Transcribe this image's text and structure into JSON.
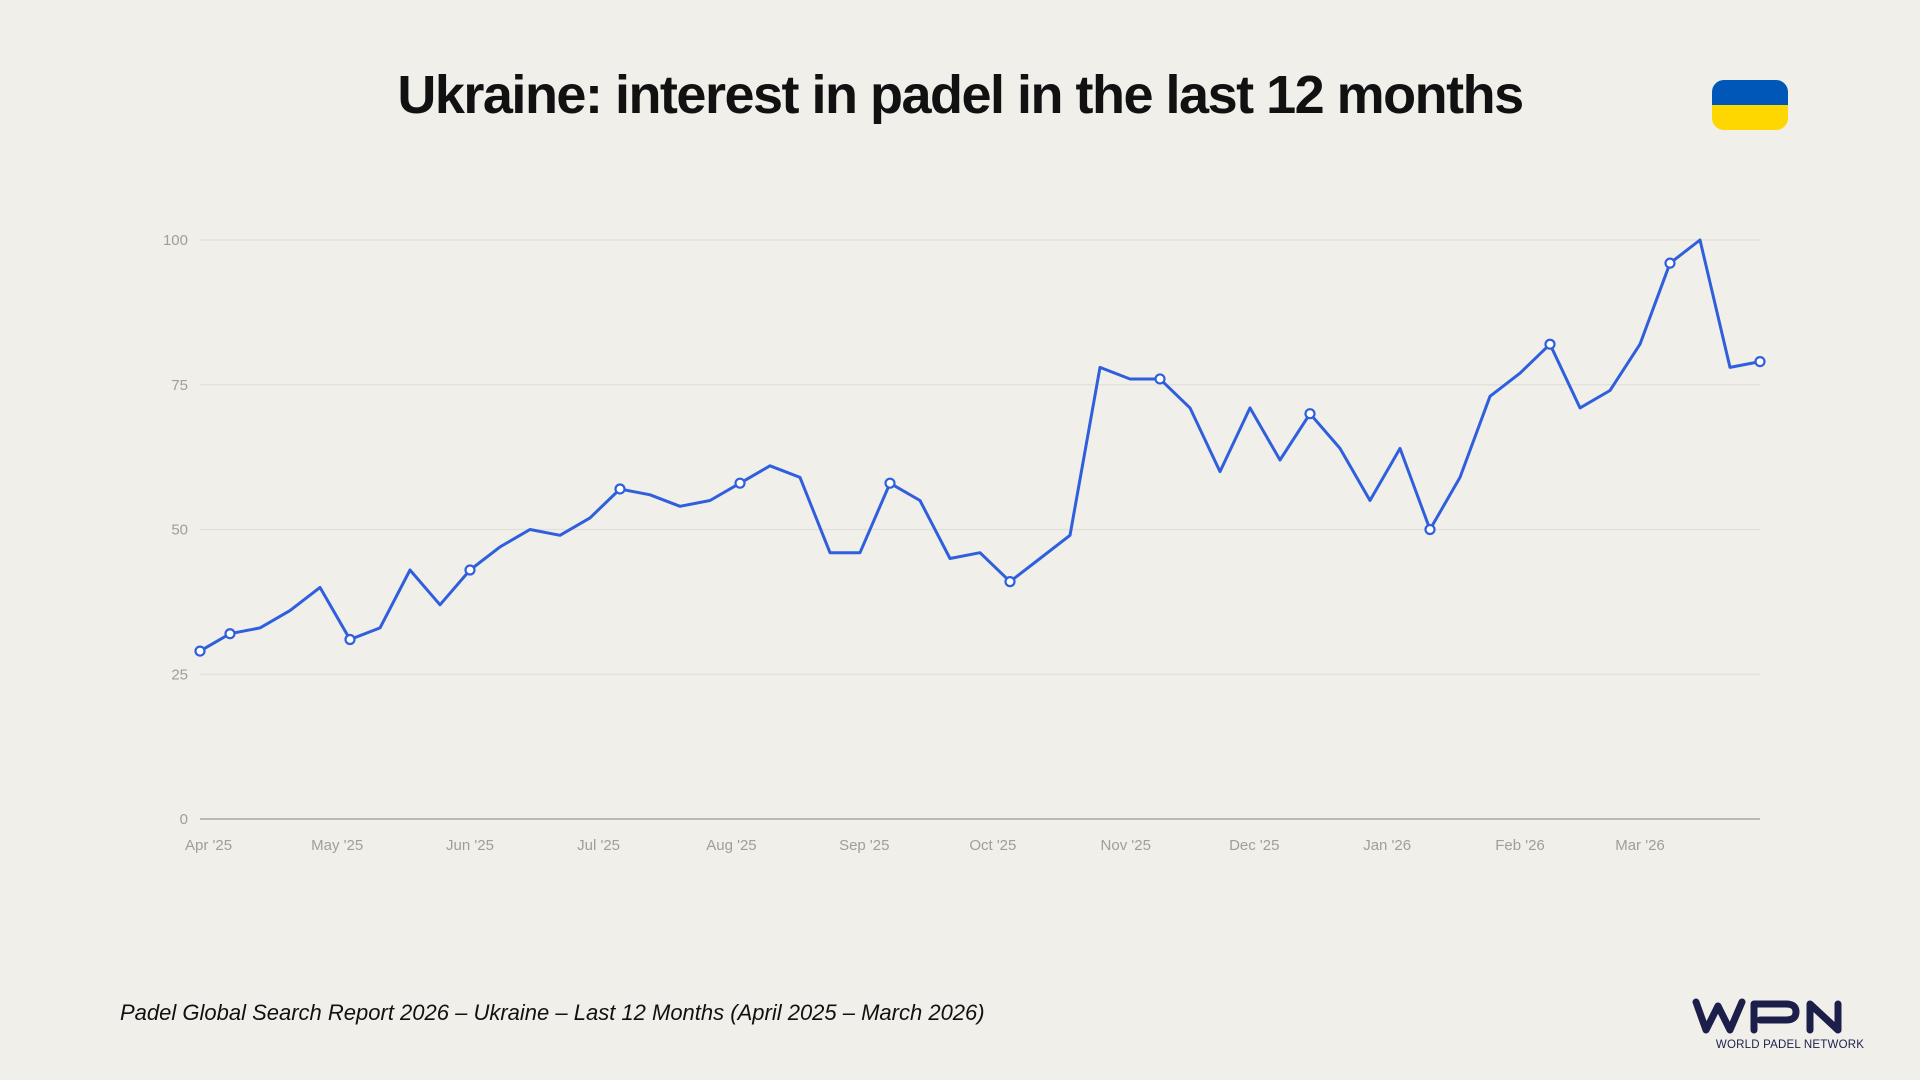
{
  "title": "Ukraine: interest in padel in the last 12 months",
  "flag": {
    "name": "ukraine-flag",
    "colors": [
      "#0057b8",
      "#ffd700"
    ]
  },
  "footer": "Padel Global Search Report 2026 – Ukraine – Last 12 Months (April 2025 – March 2026)",
  "logo": {
    "text": "WPN",
    "subtext": "WORLD PADEL NETWORK",
    "color": "#1c1f4a"
  },
  "chart_data": {
    "type": "line",
    "title": "Ukraine: interest in padel in the last 12 months",
    "xlabel": "",
    "ylabel": "",
    "ylim": [
      0,
      100
    ],
    "yticks": [
      0,
      25,
      50,
      75,
      100
    ],
    "grid": true,
    "line_color": "#2f5fdc",
    "xticks": [
      {
        "date": "2025-04-01",
        "label": "Apr '25"
      },
      {
        "date": "2025-05-01",
        "label": "May '25"
      },
      {
        "date": "2025-06-01",
        "label": "Jun '25"
      },
      {
        "date": "2025-07-01",
        "label": "Jul '25"
      },
      {
        "date": "2025-08-01",
        "label": "Aug '25"
      },
      {
        "date": "2025-09-01",
        "label": "Sep '25"
      },
      {
        "date": "2025-10-01",
        "label": "Oct '25"
      },
      {
        "date": "2025-11-01",
        "label": "Nov '25"
      },
      {
        "date": "2025-12-01",
        "label": "Dec '25"
      },
      {
        "date": "2026-01-01",
        "label": "Jan '26"
      },
      {
        "date": "2026-02-01",
        "label": "Feb '26"
      },
      {
        "date": "2026-03-01",
        "label": "Mar '26"
      }
    ],
    "x": [
      "2025-03-30",
      "2025-04-06",
      "2025-04-13",
      "2025-04-20",
      "2025-04-27",
      "2025-05-04",
      "2025-05-11",
      "2025-05-18",
      "2025-05-25",
      "2025-06-01",
      "2025-06-08",
      "2025-06-15",
      "2025-06-22",
      "2025-06-29",
      "2025-07-06",
      "2025-07-13",
      "2025-07-20",
      "2025-07-27",
      "2025-08-03",
      "2025-08-10",
      "2025-08-17",
      "2025-08-24",
      "2025-08-31",
      "2025-09-07",
      "2025-09-14",
      "2025-09-21",
      "2025-09-28",
      "2025-10-05",
      "2025-10-12",
      "2025-10-19",
      "2025-10-26",
      "2025-11-02",
      "2025-11-09",
      "2025-11-16",
      "2025-11-23",
      "2025-11-30",
      "2025-12-07",
      "2025-12-14",
      "2025-12-21",
      "2025-12-28",
      "2026-01-04",
      "2026-01-11",
      "2026-01-18",
      "2026-01-25",
      "2026-02-01",
      "2026-02-08",
      "2026-02-15",
      "2026-02-22",
      "2026-03-01",
      "2026-03-08",
      "2026-03-15",
      "2026-03-22",
      "2026-03-29"
    ],
    "values": [
      29,
      32,
      33,
      36,
      40,
      31,
      33,
      43,
      37,
      43,
      47,
      50,
      49,
      52,
      57,
      56,
      54,
      55,
      58,
      61,
      59,
      46,
      46,
      58,
      55,
      45,
      46,
      41,
      45,
      49,
      78,
      76,
      76,
      71,
      60,
      71,
      62,
      70,
      64,
      55,
      64,
      50,
      59,
      73,
      77,
      82,
      71,
      74,
      82,
      96,
      100,
      78,
      79
    ],
    "markers": [
      "2025-03-30",
      "2025-04-06",
      "2025-05-04",
      "2025-06-01",
      "2025-07-06",
      "2025-08-03",
      "2025-09-07",
      "2025-10-05",
      "2025-11-09",
      "2025-12-14",
      "2026-01-11",
      "2026-02-08",
      "2026-03-08",
      "2026-03-29"
    ]
  }
}
